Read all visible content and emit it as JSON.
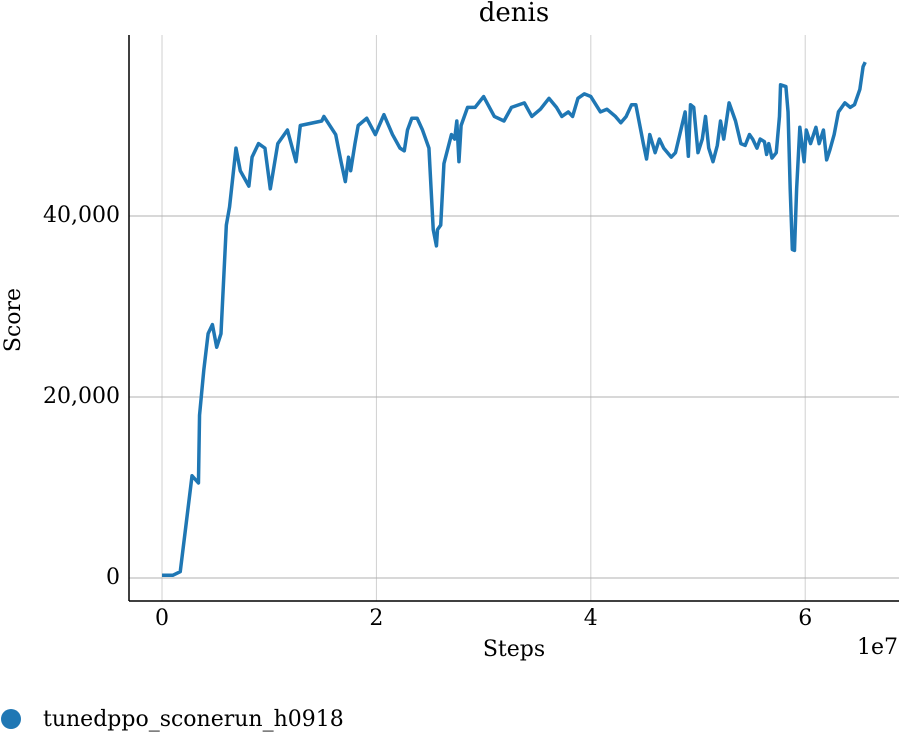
{
  "chart_data": {
    "type": "line",
    "title": "denis",
    "x_label": "Steps",
    "y_label": "Score",
    "x_offset_label": "1e7",
    "x": [
      0,
      1000000,
      1700000,
      2200000,
      2800000,
      3400000,
      3500000,
      3900000,
      4300000,
      4700000,
      5100000,
      5500000,
      6000000,
      6300000,
      6900000,
      7300000,
      8100000,
      8400000,
      9000000,
      9600000,
      10100000,
      10800000,
      11700000,
      12500000,
      12900000,
      14900000,
      15100000,
      16200000,
      16700000,
      17100000,
      17400000,
      17600000,
      18000000,
      18300000,
      19100000,
      19900000,
      20700000,
      21500000,
      22200000,
      22600000,
      22900000,
      23300000,
      23800000,
      24300000,
      24900000,
      25100000,
      25300000,
      25600000,
      25700000,
      26000000,
      26300000,
      27000000,
      27300000,
      27500000,
      27700000,
      27900000,
      28500000,
      29200000,
      30000000,
      31000000,
      31900000,
      32600000,
      33800000,
      34500000,
      35300000,
      36100000,
      36800000,
      37300000,
      37900000,
      38300000,
      38800000,
      39400000,
      40000000,
      40900000,
      41500000,
      42300000,
      42800000,
      43300000,
      43800000,
      44200000,
      44900000,
      45200000,
      45500000,
      46000000,
      46400000,
      46800000,
      47500000,
      47900000,
      48800000,
      49100000,
      49300000,
      49600000,
      50000000,
      50400000,
      50700000,
      51000000,
      51400000,
      51800000,
      52100000,
      52400000,
      52900000,
      53500000,
      54000000,
      54400000,
      54800000,
      55100000,
      55500000,
      55800000,
      56200000,
      56400000,
      56600000,
      56900000,
      57300000,
      57600000,
      57700000,
      58200000,
      58400000,
      58600000,
      58800000,
      59000000,
      59200000,
      59500000,
      59900000,
      60100000,
      60500000,
      61000000,
      61300000,
      61700000,
      62000000,
      62300000,
      62700000,
      63100000,
      63700000,
      64200000,
      64600000,
      65100000,
      65400000,
      65600000
    ],
    "series": [
      {
        "name": "tunedppo_sconerun_h0918",
        "color": "#1f77b4",
        "values": [
          300,
          300,
          700,
          5500,
          11300,
          10500,
          18000,
          23000,
          27000,
          28000,
          25500,
          27000,
          39000,
          41000,
          47500,
          45000,
          43300,
          46500,
          48000,
          47500,
          43000,
          48000,
          49500,
          46000,
          50000,
          50500,
          51000,
          49000,
          46000,
          43800,
          46500,
          45000,
          48000,
          50000,
          50800,
          49000,
          51200,
          49000,
          47500,
          47200,
          49500,
          50800,
          50800,
          49500,
          47500,
          43000,
          38500,
          36700,
          38500,
          39000,
          45800,
          49000,
          48500,
          50500,
          46000,
          50000,
          52000,
          52000,
          53200,
          51000,
          50500,
          52000,
          52500,
          51000,
          51800,
          53000,
          52000,
          51000,
          51500,
          51000,
          53000,
          53500,
          53200,
          51500,
          51800,
          51000,
          50300,
          51000,
          52300,
          52300,
          48000,
          46300,
          49000,
          47000,
          48500,
          47500,
          46500,
          47000,
          51500,
          46600,
          52300,
          52000,
          47000,
          48500,
          51000,
          47500,
          46000,
          47800,
          50500,
          48500,
          52500,
          50500,
          48000,
          47800,
          49000,
          48500,
          47500,
          48500,
          48200,
          46800,
          48000,
          46400,
          47000,
          51000,
          54500,
          54300,
          51500,
          43000,
          36300,
          36200,
          43000,
          49800,
          46000,
          49500,
          48000,
          49800,
          48000,
          49500,
          46200,
          47300,
          49000,
          51500,
          52500,
          52000,
          52300,
          54000,
          56500,
          57000
        ]
      }
    ],
    "xlim": [
      -3080000,
      68750000
    ],
    "xticks": [
      0,
      {
        "value": 20000000,
        "label": "2"
      },
      {
        "value": 40000000,
        "label": "4"
      },
      {
        "value": 60000000,
        "label": "6"
      }
    ],
    "ylim": [
      -2540,
      60000
    ],
    "yticks": [
      0,
      {
        "value": 20000,
        "label": "20,000"
      },
      {
        "value": 40000,
        "label": "40,000"
      }
    ],
    "grid": true,
    "legend": "bottom-left"
  }
}
